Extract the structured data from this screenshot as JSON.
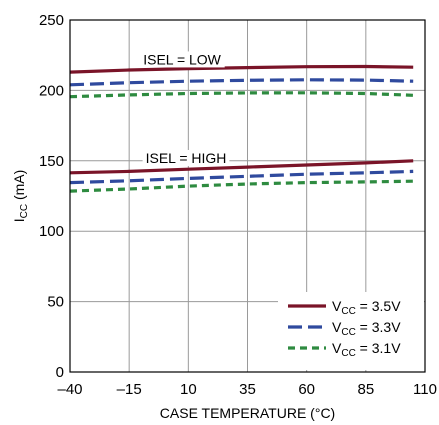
{
  "chart_data": {
    "type": "line",
    "xlabel": "CASE TEMPERATURE (°C)",
    "ylabel_main": "I",
    "ylabel_sub": "CC",
    "ylabel_unit": " (mA)",
    "xlim": [
      -40,
      110
    ],
    "ylim": [
      0,
      250
    ],
    "x_ticks": [
      -40,
      -15,
      10,
      35,
      60,
      85,
      110
    ],
    "x_tick_labels": [
      "–40",
      "–15",
      "10",
      "35",
      "60",
      "85",
      "110"
    ],
    "y_ticks": [
      0,
      50,
      100,
      150,
      200,
      250
    ],
    "y_tick_labels": [
      "0",
      "50",
      "100",
      "150",
      "200",
      "250"
    ],
    "grid": true,
    "legend_position": "bottom-right",
    "annotations": [
      {
        "text": "ISEL = LOW",
        "x": 7,
        "y": 222
      },
      {
        "text": "ISEL = HIGH",
        "x": 8,
        "y": 152
      }
    ],
    "series": [
      {
        "name": "3.5V",
        "legend_prefix": "V",
        "legend_sub": "CC",
        "legend_suffix": " = 3.5V",
        "color": "#7a1428",
        "dash": "solid",
        "group": "ISEL = LOW",
        "x": [
          -40,
          -15,
          10,
          35,
          60,
          85,
          105
        ],
        "y": [
          213,
          214.5,
          215.5,
          216.2,
          216.8,
          217,
          216.5
        ]
      },
      {
        "name": "3.3V",
        "legend_prefix": "V",
        "legend_sub": "CC",
        "legend_suffix": " = 3.3V",
        "color": "#2f4a9e",
        "dash": "long",
        "group": "ISEL = LOW",
        "x": [
          -40,
          -15,
          10,
          35,
          60,
          85,
          105
        ],
        "y": [
          204,
          205.5,
          206.5,
          207.2,
          207.5,
          207.3,
          206.5
        ]
      },
      {
        "name": "3.1V",
        "legend_prefix": "V",
        "legend_sub": "CC",
        "legend_suffix": " = 3.1V",
        "color": "#2e8b40",
        "dash": "short",
        "group": "ISEL = LOW",
        "x": [
          -40,
          -15,
          10,
          35,
          60,
          85,
          105
        ],
        "y": [
          195.5,
          196.8,
          197.8,
          198.2,
          198.3,
          197.8,
          196.5
        ]
      },
      {
        "name": "3.5V",
        "color": "#7a1428",
        "dash": "solid",
        "group": "ISEL = HIGH",
        "x": [
          -40,
          -15,
          10,
          35,
          60,
          85,
          105
        ],
        "y": [
          141.5,
          142.5,
          144,
          145.5,
          147,
          148.5,
          150
        ]
      },
      {
        "name": "3.3V",
        "color": "#2f4a9e",
        "dash": "long",
        "group": "ISEL = HIGH",
        "x": [
          -40,
          -15,
          10,
          35,
          60,
          85,
          105
        ],
        "y": [
          134.5,
          135.8,
          137.5,
          139,
          140.5,
          141.5,
          142.5
        ]
      },
      {
        "name": "3.1V",
        "color": "#2e8b40",
        "dash": "short",
        "group": "ISEL = HIGH",
        "x": [
          -40,
          -15,
          10,
          35,
          60,
          85,
          105
        ],
        "y": [
          128.5,
          130,
          132,
          133.5,
          134.5,
          135,
          135.5
        ]
      }
    ]
  }
}
